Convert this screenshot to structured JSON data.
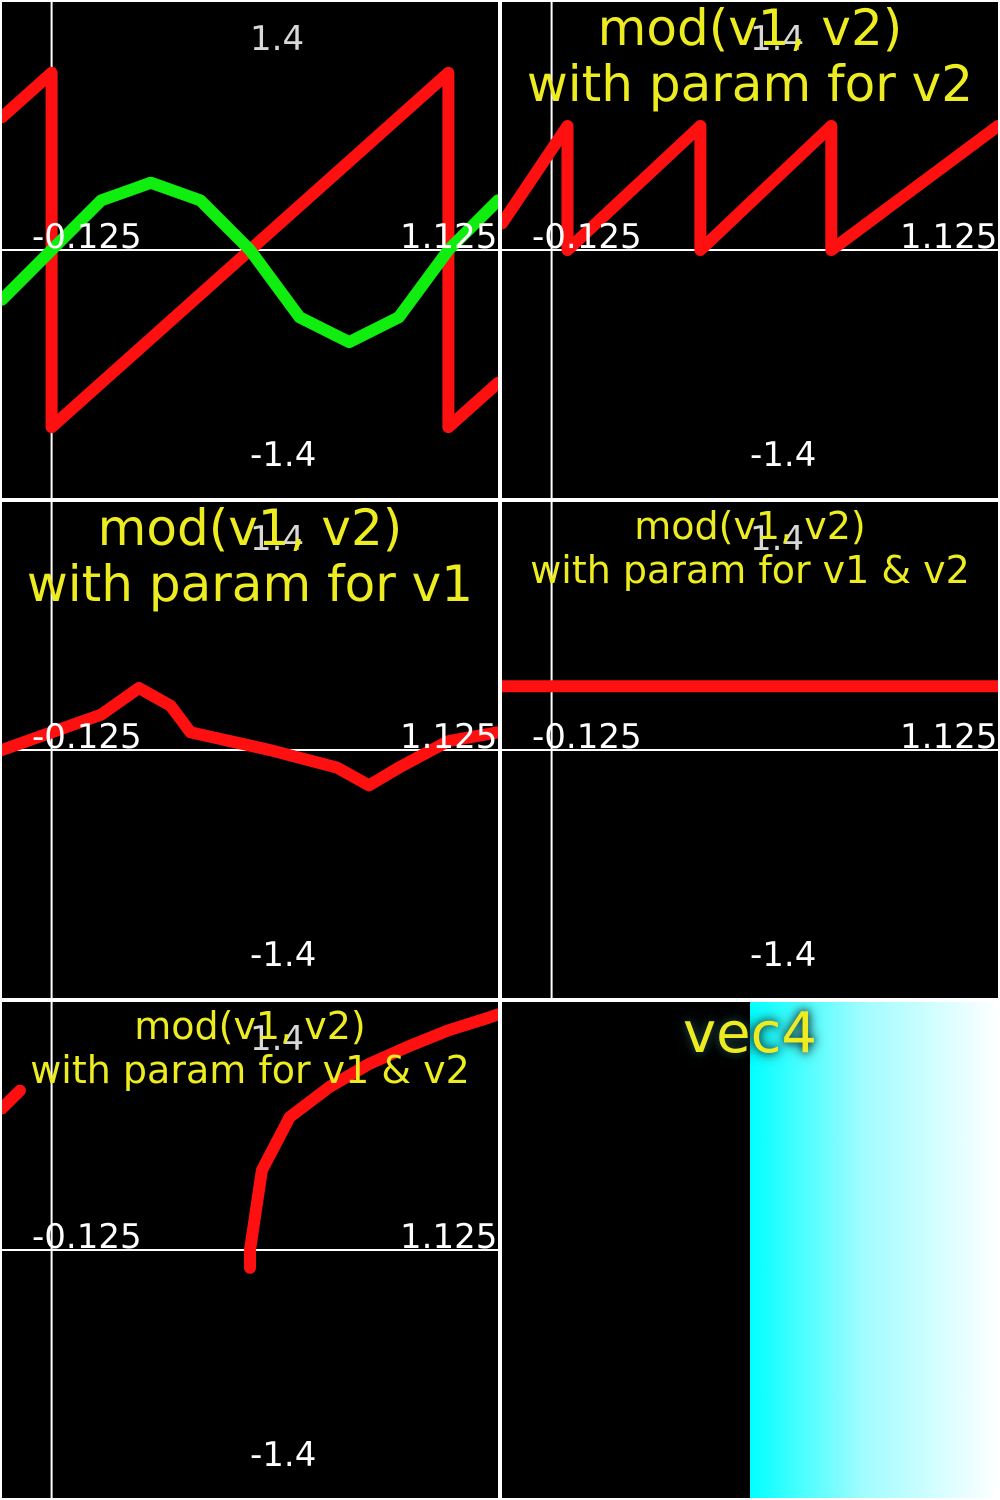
{
  "axis_labels": {
    "ymax": "1.4",
    "ymin": "-1.4",
    "xmin": "-0.125",
    "xmax": "1.125"
  },
  "colors": {
    "background": "#000000",
    "axis": "#ffffff",
    "red": "#ff1010",
    "green": "#10ee10",
    "title": "#ecec20",
    "cyan": "#00ffff"
  },
  "panels": [
    {
      "title_lines": []
    },
    {
      "title_lines": [
        "mod(v1, v2)",
        "with param for v2"
      ]
    },
    {
      "title_lines": [
        "mod(v1, v2)",
        "with param for v1"
      ]
    },
    {
      "title_lines": [
        "mod(v1, v2)",
        "with param for v1 & v2"
      ]
    },
    {
      "title_lines": [
        "mod(v1, v2)",
        "with param for v1 & v2"
      ]
    },
    {
      "title_lines": [
        "vec4"
      ]
    }
  ],
  "chart_data": [
    {
      "type": "line",
      "xlim": [
        -0.125,
        1.125
      ],
      "ylim": [
        -1.4,
        1.4
      ],
      "xticks": [
        "-0.125",
        "1.125"
      ],
      "yticks": [
        "1.4",
        "-1.4"
      ],
      "series": [
        {
          "color": "#ff1010",
          "x": [
            -0.125,
            0,
            0,
            1,
            1,
            1.125
          ],
          "y": [
            0.75,
            1.0,
            -1.0,
            1.0,
            -1.0,
            -0.75
          ]
        },
        {
          "color": "#10ee10",
          "x": [
            -0.125,
            0,
            0.125,
            0.25,
            0.375,
            0.5,
            0.625,
            0.75,
            0.875,
            1,
            1.125
          ],
          "y": [
            -0.28,
            0.0,
            0.28,
            0.38,
            0.28,
            0.0,
            -0.38,
            -0.52,
            -0.38,
            0.0,
            0.28
          ]
        }
      ]
    },
    {
      "type": "line",
      "xlim": [
        -0.125,
        1.125
      ],
      "ylim": [
        -1.4,
        1.4
      ],
      "xticks": [
        "-0.125",
        "1.125"
      ],
      "yticks": [
        "1.4",
        "-1.4"
      ],
      "series": [
        {
          "color": "#ff1010",
          "x": [
            -0.125,
            0.04,
            0.04,
            0.375,
            0.375,
            0.705,
            0.705,
            1.125
          ],
          "y": [
            0.15,
            0.7,
            0.0,
            0.7,
            0.0,
            0.7,
            0.0,
            0.7
          ]
        }
      ]
    },
    {
      "type": "line",
      "xlim": [
        -0.125,
        1.125
      ],
      "ylim": [
        -1.4,
        1.4
      ],
      "xticks": [
        "-0.125",
        "1.125"
      ],
      "yticks": [
        "1.4",
        "-1.4"
      ],
      "series": [
        {
          "color": "#ff1010",
          "x": [
            -0.125,
            0.0,
            0.125,
            0.22,
            0.3,
            0.35,
            0.55,
            0.72,
            0.8,
            0.875,
            1.0,
            1.125
          ],
          "y": [
            0.0,
            0.1,
            0.2,
            0.35,
            0.25,
            0.1,
            0.0,
            -0.1,
            -0.2,
            -0.1,
            0.05,
            0.1
          ]
        }
      ]
    },
    {
      "type": "line",
      "xlim": [
        -0.125,
        1.125
      ],
      "ylim": [
        -1.4,
        1.4
      ],
      "xticks": [
        "-0.125",
        "1.125"
      ],
      "yticks": [
        "1.4",
        "-1.4"
      ],
      "series": [
        {
          "color": "#ff1010",
          "x": [
            -0.125,
            1.125
          ],
          "y": [
            0.36,
            0.36
          ]
        }
      ]
    },
    {
      "type": "line",
      "xlim": [
        -0.125,
        1.125
      ],
      "ylim": [
        -1.4,
        1.4
      ],
      "xticks": [
        "-0.125",
        "1.125"
      ],
      "yticks": [
        "1.4",
        "-1.4"
      ],
      "series": [
        {
          "color": "#ff1010",
          "x": [
            -0.125,
            -0.08
          ],
          "y": [
            0.8,
            0.9
          ]
        },
        {
          "color": "#ff1010",
          "x": [
            0.5,
            0.5,
            0.53,
            0.6,
            0.7,
            0.8,
            0.9,
            1.0,
            1.1,
            1.125
          ],
          "y": [
            -0.1,
            0.0,
            0.45,
            0.75,
            0.92,
            1.05,
            1.15,
            1.24,
            1.31,
            1.33
          ]
        }
      ]
    }
  ]
}
